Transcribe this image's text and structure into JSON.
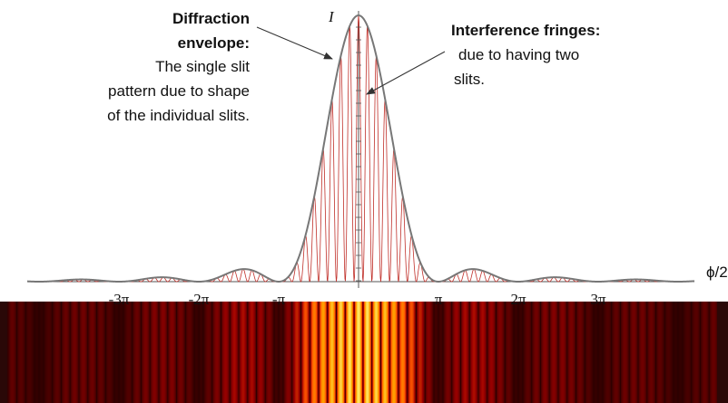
{
  "envelope_note": {
    "title": [
      "Diffraction",
      "envelope:"
    ],
    "lines": [
      "The single slit",
      "pattern due to shape",
      "of the individual slits."
    ]
  },
  "fringes_note": {
    "title": "Interference fringes:",
    "lines": [
      "due to having two",
      "slits."
    ]
  },
  "axis": {
    "y_label": "I",
    "x_label": "ϕ/2",
    "ticks": [
      "-3π",
      "-2π",
      "-π",
      "π",
      "2π",
      "3π"
    ]
  }
}
